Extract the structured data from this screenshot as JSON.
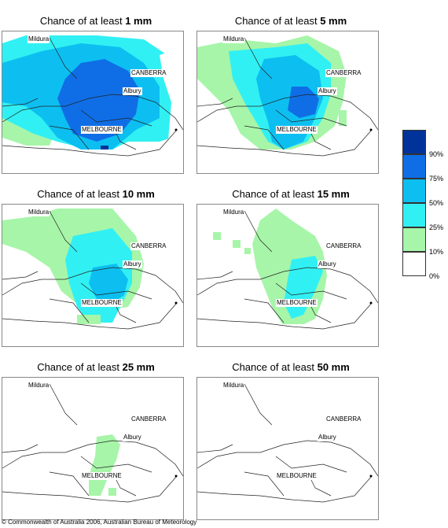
{
  "panels": [
    {
      "title_prefix": "Chance of at least ",
      "amount": "1 mm",
      "labels": {
        "mildura": "Mildura",
        "canberra": "CANBERRA",
        "albury": "Albury",
        "melbourne": "MELBOURNE"
      },
      "coverage": "very-high"
    },
    {
      "title_prefix": "Chance of at least ",
      "amount": "5 mm",
      "labels": {
        "mildura": "Mildura",
        "canberra": "CANBERRA",
        "albury": "Albury",
        "melbourne": "MELBOURNE"
      },
      "coverage": "high"
    },
    {
      "title_prefix": "Chance of at least ",
      "amount": "10 mm",
      "labels": {
        "mildura": "Mildura",
        "canberra": "CANBERRA",
        "albury": "Albury",
        "melbourne": "MELBOURNE"
      },
      "coverage": "medium"
    },
    {
      "title_prefix": "Chance of at least ",
      "amount": "15 mm",
      "labels": {
        "mildura": "Mildura",
        "canberra": "CANBERRA",
        "albury": "Albury",
        "melbourne": "MELBOURNE"
      },
      "coverage": "low"
    },
    {
      "title_prefix": "Chance of at least ",
      "amount": "25 mm",
      "labels": {
        "mildura": "Mildura",
        "canberra": "CANBERRA",
        "albury": "Albury",
        "melbourne": "MELBOURNE"
      },
      "coverage": "very-low"
    },
    {
      "title_prefix": "Chance of at least ",
      "amount": "50 mm",
      "labels": {
        "mildura": "Mildura",
        "canberra": "CANBERRA",
        "albury": "Albury",
        "melbourne": "MELBOURNE"
      },
      "coverage": "none"
    }
  ],
  "legend": {
    "ticks": [
      "90%",
      "75%",
      "50%",
      "25%",
      "10%",
      "0%"
    ],
    "bins": [
      {
        "color": "#00339a"
      },
      {
        "color": "#0f6ee6"
      },
      {
        "color": "#0dbff0"
      },
      {
        "color": "#31f0f3"
      },
      {
        "color": "#a7f5a9"
      },
      {
        "color": "#ffffff"
      }
    ]
  },
  "copyright": "© Commonwealth of Australia 2006, Australian Bureau of Meteorology"
}
